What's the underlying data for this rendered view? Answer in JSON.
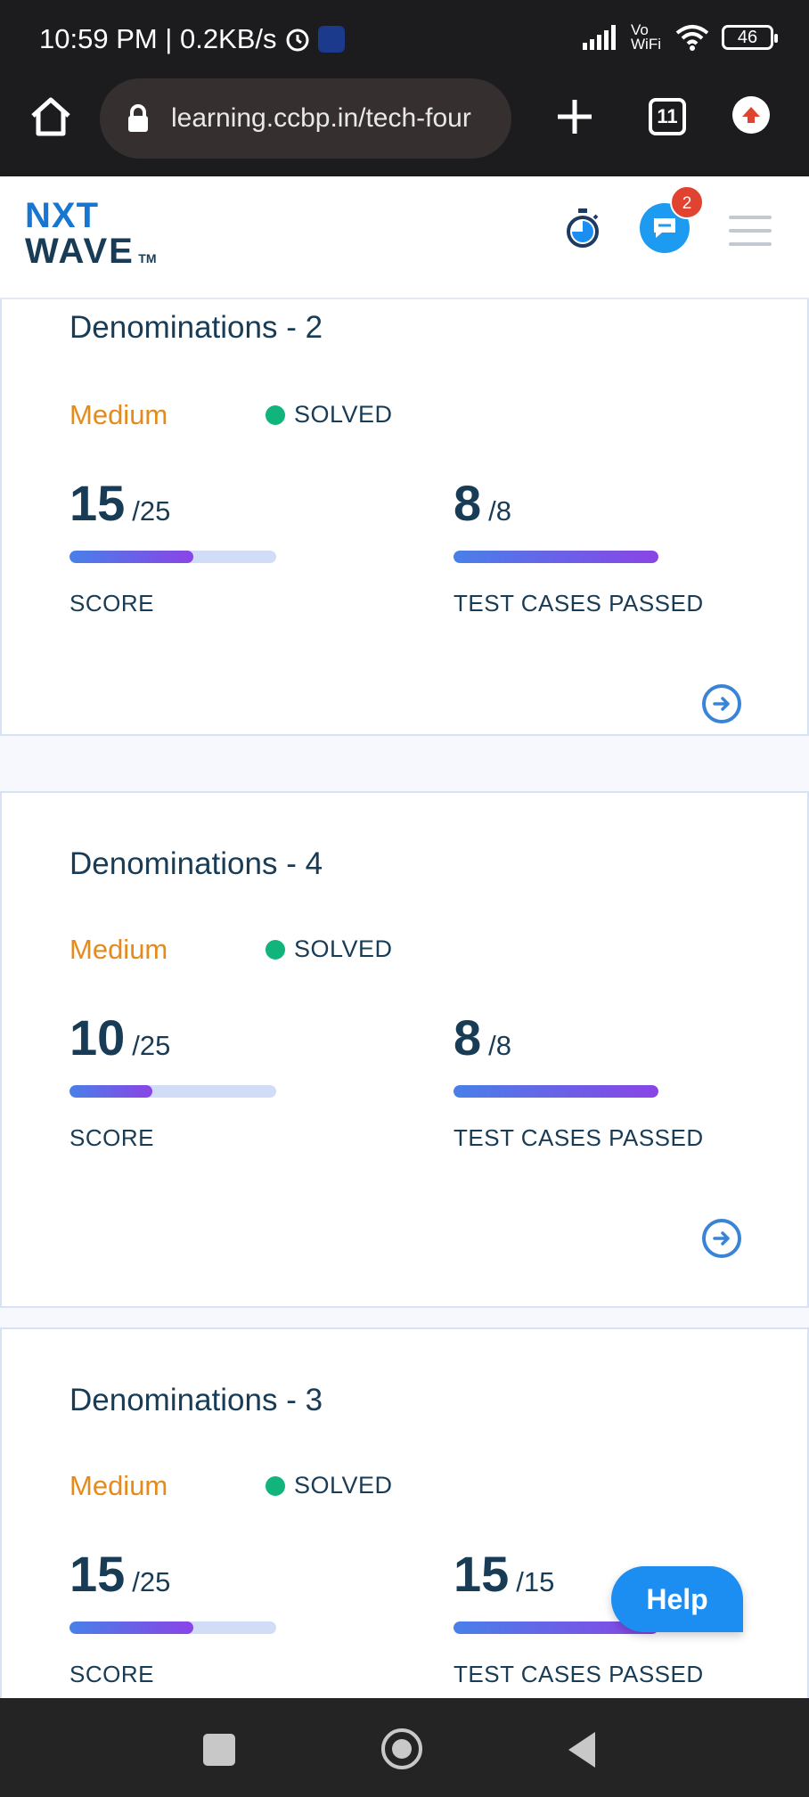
{
  "status_bar": {
    "time_speed": "10:59 PM | 0.2KB/s",
    "network": "Vo WiFi",
    "battery": "46"
  },
  "browser": {
    "url": "learning.ccbp.in/tech-four",
    "tab_count": "11"
  },
  "header": {
    "logo_line1": "NXT",
    "logo_line2": "WAVE",
    "logo_tm": "TM",
    "chat_badge": "2"
  },
  "cards": [
    {
      "title": "Denominations - 2",
      "difficulty": "Medium",
      "status": "SOLVED",
      "score": "15",
      "score_total": "/25",
      "score_fraction": 0.6,
      "score_label": "SCORE",
      "tests": "8",
      "tests_total": "/8",
      "tests_fraction": 1.0,
      "tests_label": "TEST CASES PASSED"
    },
    {
      "title": "Denominations - 4",
      "difficulty": "Medium",
      "status": "SOLVED",
      "score": "10",
      "score_total": "/25",
      "score_fraction": 0.4,
      "score_label": "SCORE",
      "tests": "8",
      "tests_total": "/8",
      "tests_fraction": 1.0,
      "tests_label": "TEST CASES PASSED"
    },
    {
      "title": "Denominations - 3",
      "difficulty": "Medium",
      "status": "SOLVED",
      "score": "15",
      "score_total": "/25",
      "score_fraction": 0.6,
      "score_label": "SCORE",
      "tests": "15",
      "tests_total": "/15",
      "tests_fraction": 1.0,
      "tests_label": "TEST CASES PASSED"
    }
  ],
  "help_label": "Help",
  "icons": {
    "home": "home-icon",
    "lock": "lock-icon",
    "new_tab": "plus-icon",
    "update": "arrow-up-icon",
    "timer": "stopwatch-icon",
    "chat": "chat-icon",
    "menu": "hamburger-icon",
    "open_problem": "arrow-right-circle-icon"
  }
}
